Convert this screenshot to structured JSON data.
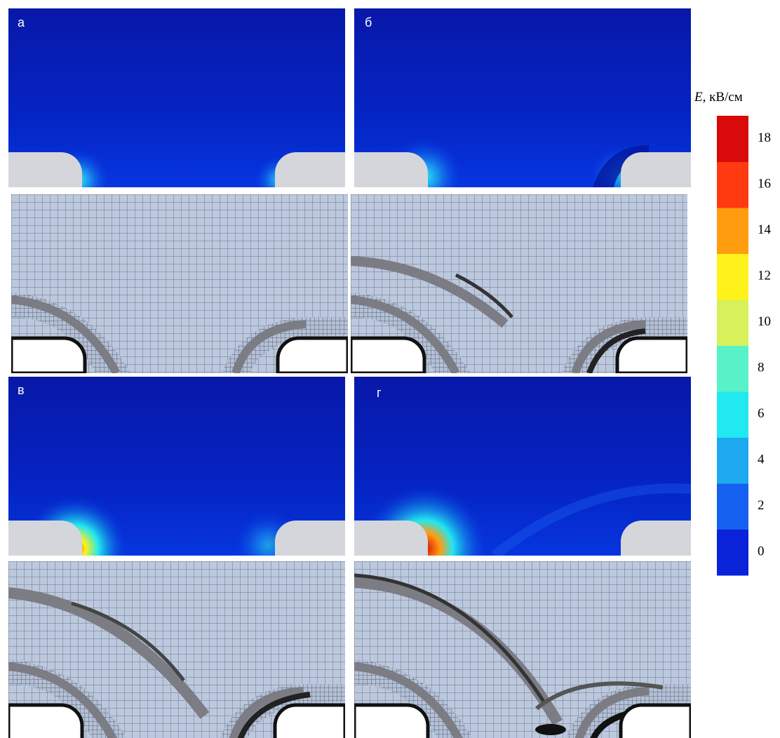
{
  "panels": [
    {
      "label": "а"
    },
    {
      "label": "б"
    },
    {
      "label": "в"
    },
    {
      "label": "г"
    }
  ],
  "colorbar": {
    "symbol": "E",
    "unit": ", кВ/см",
    "ticks": [
      0,
      2,
      4,
      6,
      8,
      10,
      12,
      14,
      16,
      18
    ],
    "colors": [
      "#0a22d8",
      "#1560ee",
      "#1ea8f0",
      "#22e8f0",
      "#58f2c8",
      "#d8f05a",
      "#fff21a",
      "#ff9c10",
      "#ff3a10",
      "#d80a0a"
    ]
  }
}
